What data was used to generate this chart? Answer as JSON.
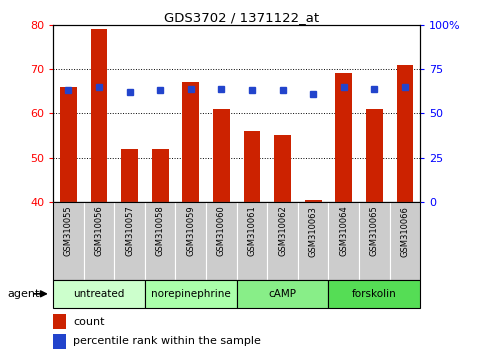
{
  "title": "GDS3702 / 1371122_at",
  "samples": [
    "GSM310055",
    "GSM310056",
    "GSM310057",
    "GSM310058",
    "GSM310059",
    "GSM310060",
    "GSM310061",
    "GSM310062",
    "GSM310063",
    "GSM310064",
    "GSM310065",
    "GSM310066"
  ],
  "counts": [
    66,
    79,
    52,
    52,
    67,
    61,
    56,
    55,
    40.5,
    69,
    61,
    71
  ],
  "percentiles": [
    63,
    65,
    62,
    63,
    64,
    64,
    63,
    63,
    61,
    65,
    64,
    65
  ],
  "ylim_left": [
    40,
    80
  ],
  "ylim_right": [
    0,
    100
  ],
  "yticks_left": [
    40,
    50,
    60,
    70,
    80
  ],
  "yticks_right": [
    0,
    25,
    50,
    75,
    100
  ],
  "yticklabels_right": [
    "0",
    "25",
    "50",
    "75",
    "100%"
  ],
  "bar_color": "#cc2200",
  "dot_color": "#2244cc",
  "group_boundaries": [
    [
      0,
      2,
      "untreated"
    ],
    [
      3,
      5,
      "norepinephrine"
    ],
    [
      6,
      8,
      "cAMP"
    ],
    [
      9,
      11,
      "forskolin"
    ]
  ],
  "green_shades": [
    "#ccffcc",
    "#aaffaa",
    "#88ee88",
    "#55dd55"
  ],
  "legend_count_label": "count",
  "legend_pct_label": "percentile rank within the sample",
  "agent_label": "agent",
  "xlabels_bg": "#cccccc",
  "plot_bg": "#ffffff"
}
